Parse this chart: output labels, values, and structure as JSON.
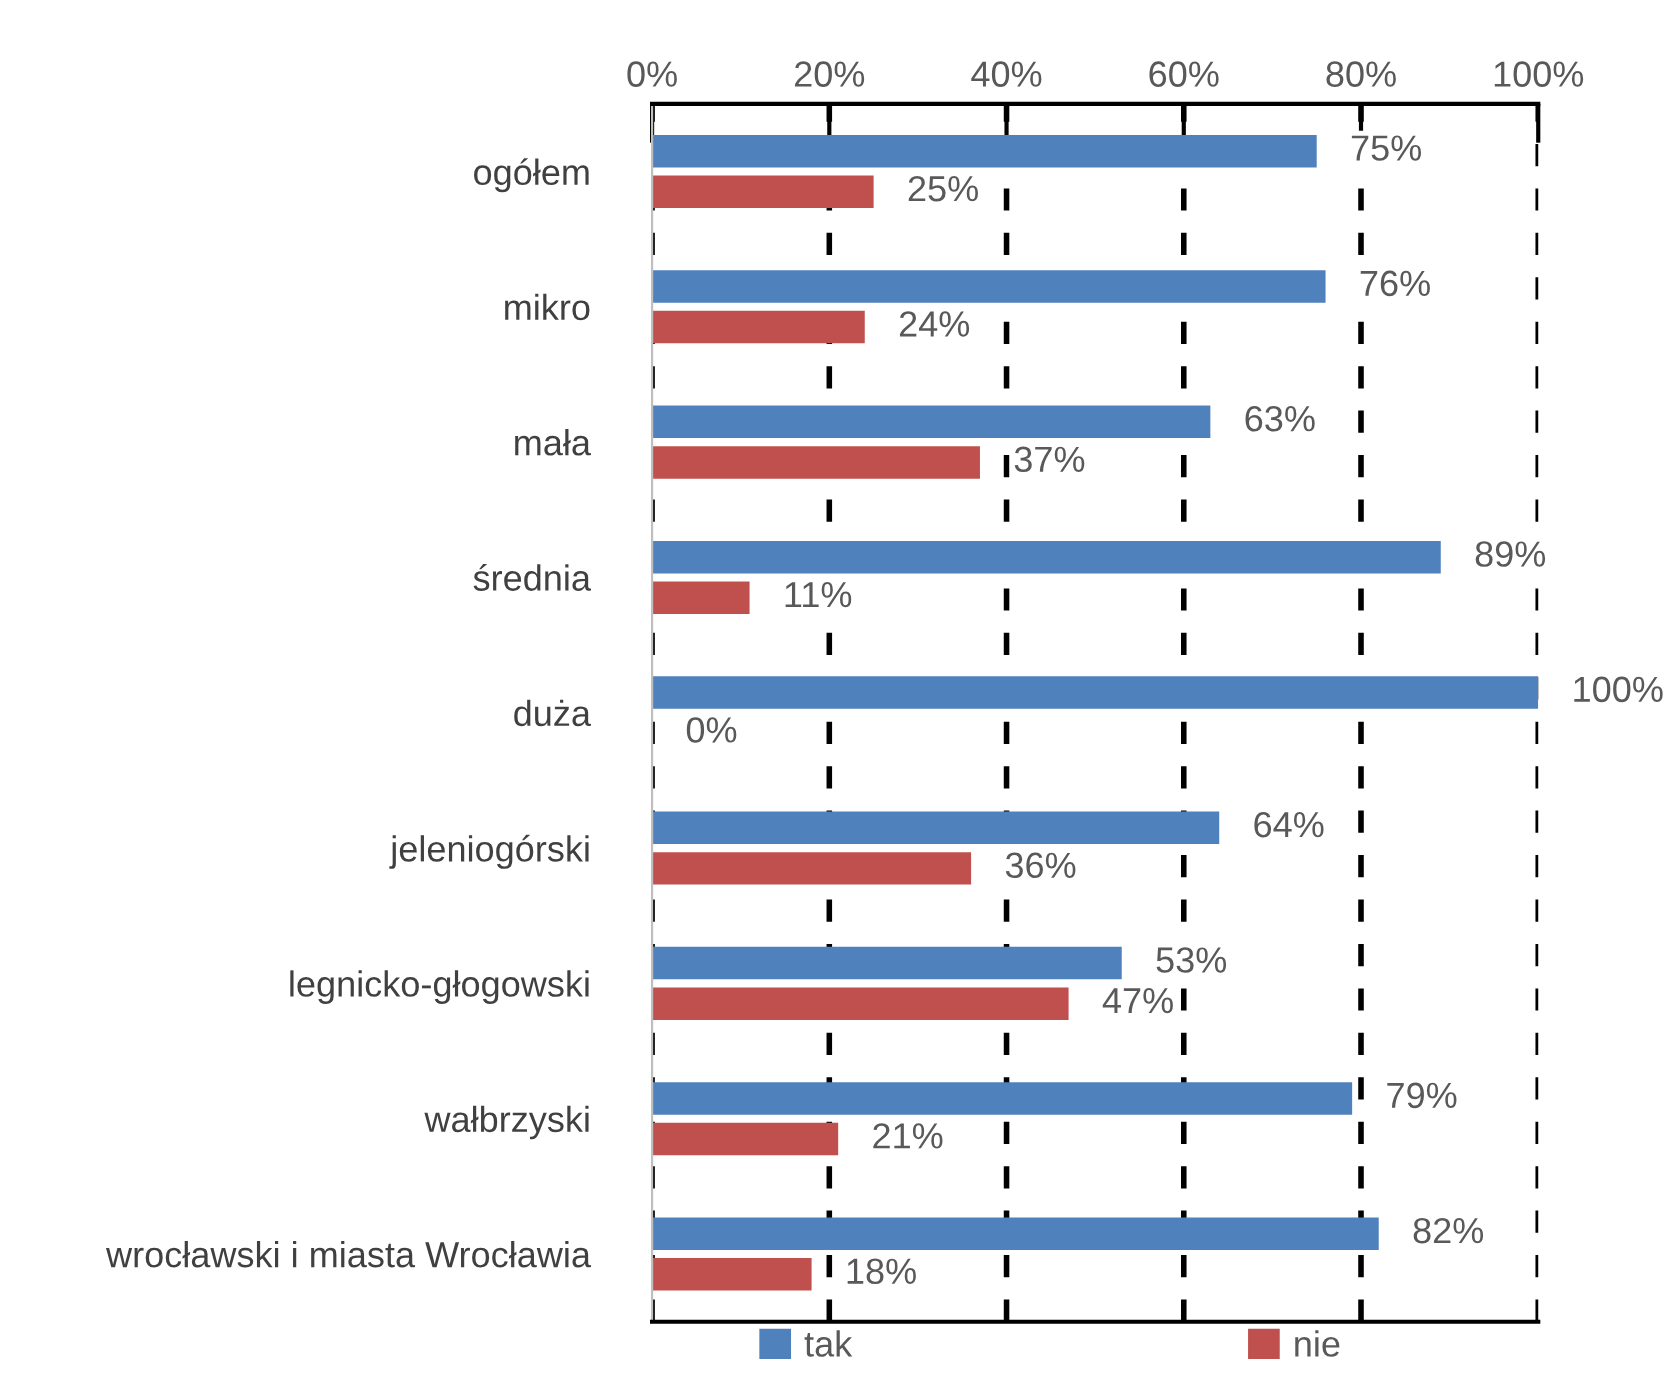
{
  "chart_data": {
    "type": "bar",
    "orientation": "horizontal",
    "categories": [
      "ogółem",
      "mikro",
      "mała",
      "średnia",
      "duża",
      "jeleniogórski",
      "legnicko-głogowski",
      "wałbrzyski",
      "wrocławski i miasta Wrocławia"
    ],
    "series": [
      {
        "name": "tak",
        "color": "#4f81bd",
        "values": [
          75,
          76,
          63,
          89,
          100,
          64,
          53,
          79,
          82
        ],
        "value_labels": [
          "75%",
          "76%",
          "63%",
          "89%",
          "100%",
          "64%",
          "53%",
          "79%",
          "82%"
        ]
      },
      {
        "name": "nie",
        "color": "#c0504d",
        "values": [
          25,
          24,
          37,
          11,
          0,
          36,
          47,
          21,
          18
        ],
        "value_labels": [
          "25%",
          "24%",
          "37%",
          "11%",
          "0%",
          "36%",
          "47%",
          "21%",
          "18%"
        ]
      }
    ],
    "xlim": [
      0,
      100
    ],
    "xticks": [
      {
        "value": 0,
        "label": "0%"
      },
      {
        "value": 20,
        "label": "20%"
      },
      {
        "value": 40,
        "label": "40%"
      },
      {
        "value": 60,
        "label": "60%"
      },
      {
        "value": 80,
        "label": "80%"
      },
      {
        "value": 100,
        "label": "100%"
      }
    ],
    "grid": "x",
    "legend": "bottom"
  }
}
